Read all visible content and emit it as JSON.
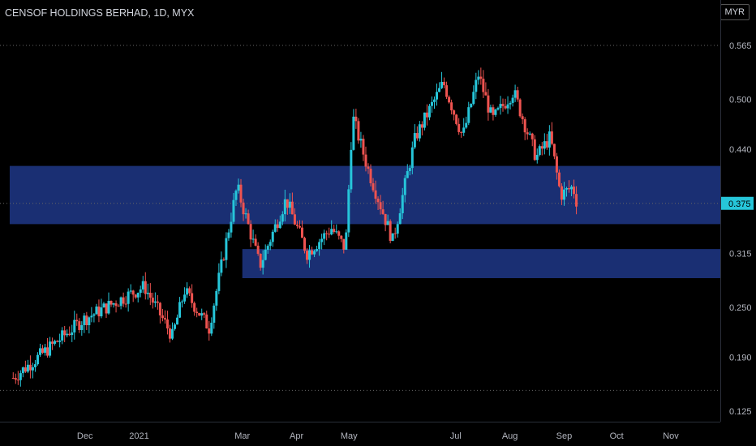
{
  "header": {
    "title": "CENSOF HOLDINGS BERHAD, 1D, MYX",
    "currency": "MYR"
  },
  "colors": {
    "up": "#26c6da",
    "down": "#ef5350",
    "zone": "#1a2f73",
    "axis_text": "#b2b5be",
    "dotted": "#666"
  },
  "chart_data": {
    "type": "candlestick",
    "title": "CENSOF HOLDINGS BERHAD, 1D, MYX",
    "ylim": [
      0.12,
      0.58
    ],
    "y_ticks": [
      "0.565",
      "0.500",
      "0.440",
      "0.375",
      "0.315",
      "0.250",
      "0.190",
      "0.125"
    ],
    "x_ticks": [
      "Dec",
      "2021",
      "Mar",
      "Apr",
      "May",
      "Jul",
      "Aug",
      "Sep",
      "Oct",
      "Nov"
    ],
    "last_price": "0.375",
    "reference_lines": [
      0.565,
      0.375,
      0.15
    ],
    "zones": [
      {
        "low": 0.35,
        "high": 0.42,
        "start_date": "2020-10-19"
      },
      {
        "low": 0.285,
        "high": 0.32,
        "start_date": "2021-03-01"
      }
    ],
    "key_levels": [
      {
        "date": "2020-10-21",
        "price": 0.165
      },
      {
        "date": "2020-11-30",
        "price": 0.235
      },
      {
        "date": "2021-01-04",
        "price": 0.275
      },
      {
        "date": "2021-01-20",
        "price": 0.215
      },
      {
        "date": "2021-01-27",
        "price": 0.27
      },
      {
        "date": "2021-02-10",
        "price": 0.225
      },
      {
        "date": "2021-02-26",
        "price": 0.395
      },
      {
        "date": "2021-03-11",
        "price": 0.3
      },
      {
        "date": "2021-03-26",
        "price": 0.38
      },
      {
        "date": "2021-04-07",
        "price": 0.315
      },
      {
        "date": "2021-04-21",
        "price": 0.345
      },
      {
        "date": "2021-04-29",
        "price": 0.32
      },
      {
        "date": "2021-05-03",
        "price": 0.48
      },
      {
        "date": "2021-05-12",
        "price": 0.415
      },
      {
        "date": "2021-05-26",
        "price": 0.33
      },
      {
        "date": "2021-06-08",
        "price": 0.455
      },
      {
        "date": "2021-06-24",
        "price": 0.52
      },
      {
        "date": "2021-07-05",
        "price": 0.455
      },
      {
        "date": "2021-07-14",
        "price": 0.53
      },
      {
        "date": "2021-07-22",
        "price": 0.475
      },
      {
        "date": "2021-08-03",
        "price": 0.51
      },
      {
        "date": "2021-08-16",
        "price": 0.43
      },
      {
        "date": "2021-08-24",
        "price": 0.455
      },
      {
        "date": "2021-08-30",
        "price": 0.385
      },
      {
        "date": "2021-09-06",
        "price": 0.395
      },
      {
        "date": "2021-09-09",
        "price": 0.37
      }
    ]
  }
}
